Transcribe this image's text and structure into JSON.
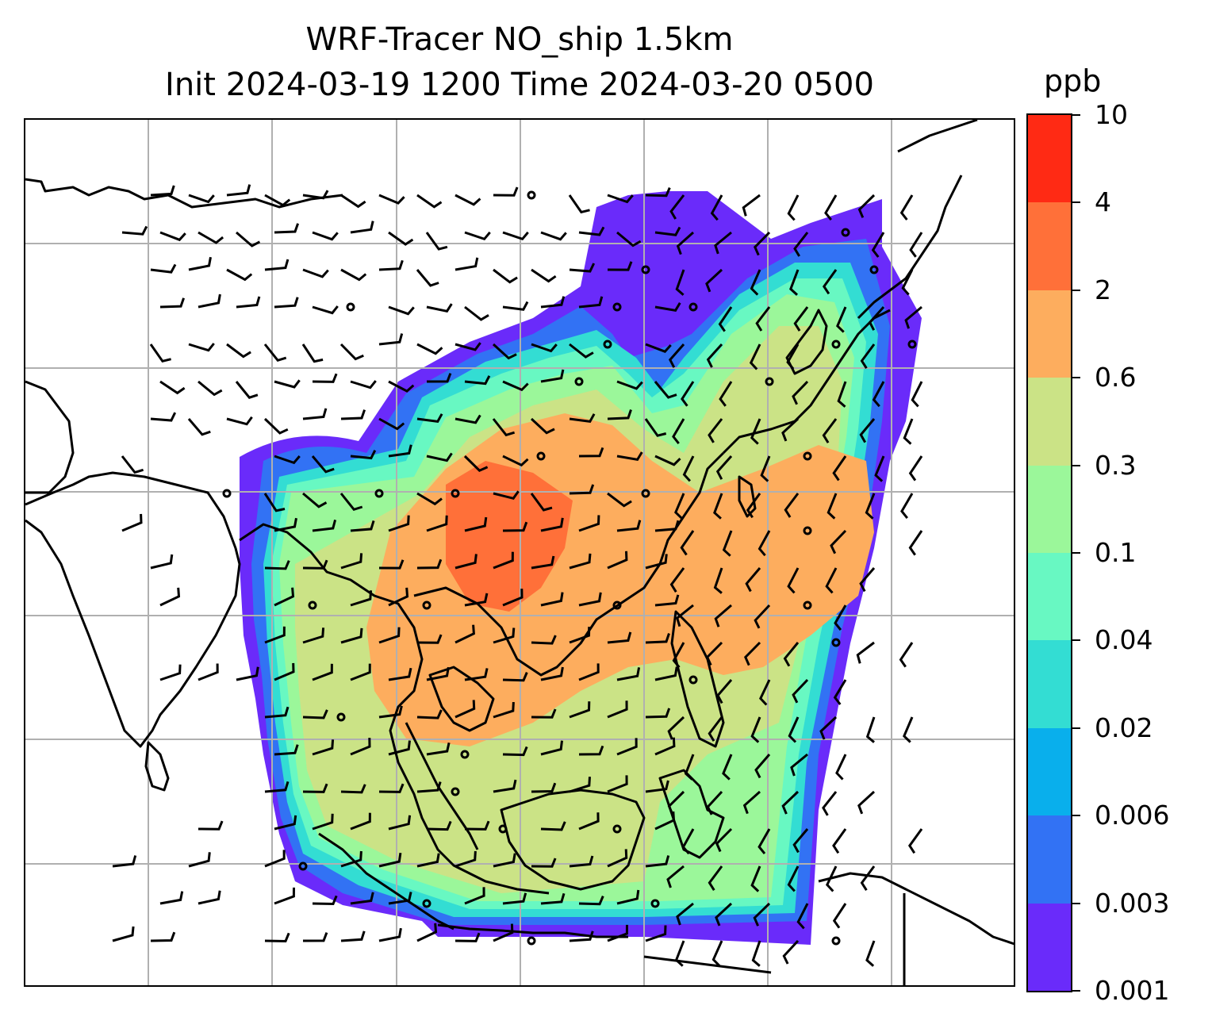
{
  "title": {
    "line1": "WRF-Tracer NO_ship 1.5km",
    "line2": "Init 2024-03-19 1200 Time 2024-03-20 0500"
  },
  "colorbar": {
    "unit": "ppb",
    "ticks": [
      "0.001",
      "0.003",
      "0.006",
      "0.02",
      "0.04",
      "0.1",
      "0.3",
      "0.6",
      "2",
      "4",
      "10"
    ],
    "colors": [
      "#6a2bfa",
      "#3272f4",
      "#09afec",
      "#33ddd3",
      "#68f8c2",
      "#9bf79a",
      "#cbe386",
      "#fdad5e",
      "#ff7039",
      "#ff2a14"
    ]
  },
  "map": {
    "field": "NO_ship",
    "level": "1.5km",
    "gridlines": true,
    "wind_barbs": true
  }
}
